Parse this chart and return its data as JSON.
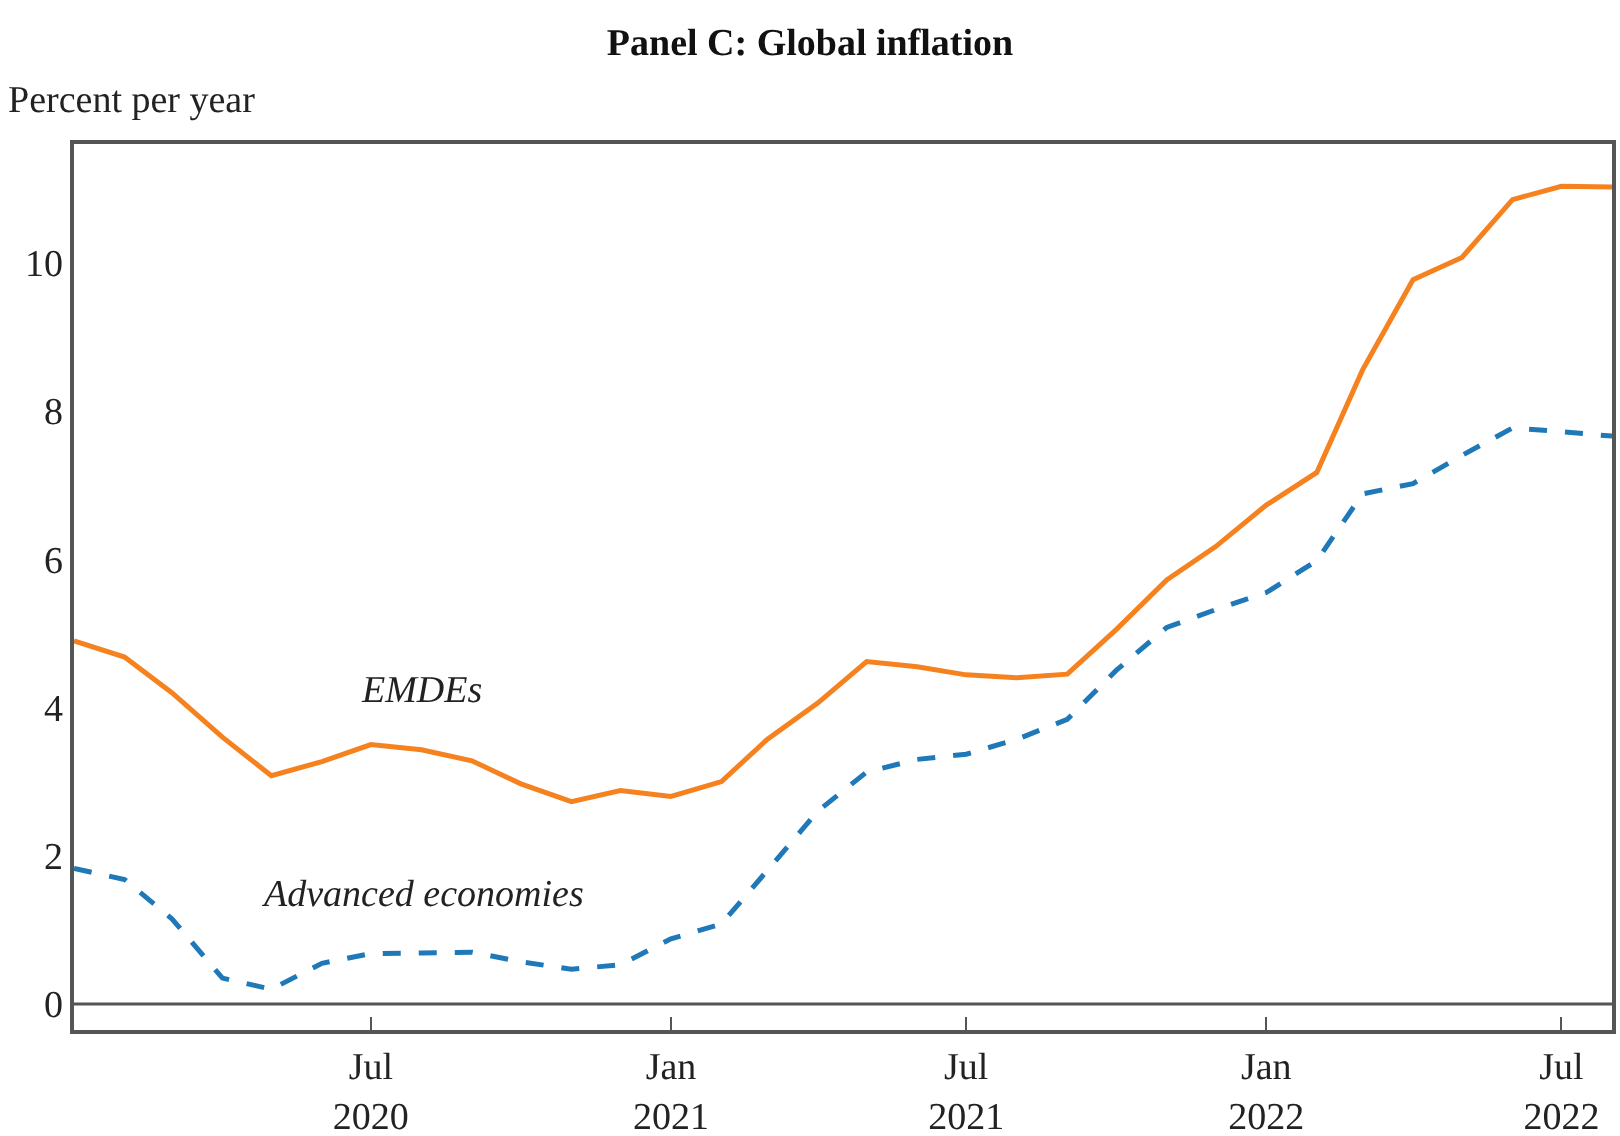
{
  "chart_data": {
    "type": "line",
    "title": "Panel C: Global inflation",
    "ylabel": "Percent per year",
    "x": [
      "2020-01",
      "2020-02",
      "2020-03",
      "2020-04",
      "2020-05",
      "2020-06",
      "2020-07",
      "2020-08",
      "2020-09",
      "2020-10",
      "2020-11",
      "2020-12",
      "2021-01",
      "2021-02",
      "2021-03",
      "2021-04",
      "2021-05",
      "2021-06",
      "2021-07",
      "2021-08",
      "2021-09",
      "2021-10",
      "2021-11",
      "2021-12",
      "2022-01",
      "2022-02",
      "2022-03",
      "2022-04",
      "2022-05",
      "2022-06",
      "2022-07",
      "2022-08"
    ],
    "series": [
      {
        "name": "EMDEs",
        "color": "#f5821f",
        "line_style": "solid",
        "values": [
          4.9,
          4.68,
          4.2,
          3.6,
          3.08,
          3.27,
          3.5,
          3.43,
          3.28,
          2.97,
          2.73,
          2.88,
          2.8,
          3.0,
          3.57,
          4.06,
          4.62,
          4.55,
          4.44,
          4.4,
          4.45,
          5.05,
          5.72,
          6.17,
          6.73,
          7.17,
          8.55,
          9.77,
          10.07,
          10.85,
          11.03,
          11.02
        ]
      },
      {
        "name": "Advanced economies",
        "color": "#1f78b8",
        "line_style": "dashed",
        "values": [
          1.83,
          1.68,
          1.15,
          0.35,
          0.2,
          0.55,
          0.68,
          0.69,
          0.7,
          0.57,
          0.47,
          0.53,
          0.88,
          1.08,
          1.8,
          2.6,
          3.13,
          3.3,
          3.37,
          3.57,
          3.84,
          4.5,
          5.08,
          5.32,
          5.55,
          5.98,
          6.88,
          7.02,
          7.4,
          7.77,
          7.72,
          7.66
        ]
      }
    ],
    "xlim": [
      "2020-01",
      "2022-08"
    ],
    "xticks": [
      {
        "value": "2020-07",
        "label": "Jul\n2020"
      },
      {
        "value": "2021-01",
        "label": "Jan\n2021"
      },
      {
        "value": "2021-07",
        "label": "Jul\n2021"
      },
      {
        "value": "2022-01",
        "label": "Jan\n2022"
      },
      {
        "value": "2022-07",
        "label": "Jul\n2022"
      }
    ],
    "ylim": [
      -0.35,
      11.6
    ],
    "yticks": [
      0,
      2,
      4,
      6,
      8,
      10
    ],
    "ref_lines": [
      {
        "axis": "y",
        "value": 0,
        "color": "#555555"
      }
    ],
    "grid": false,
    "legend": false,
    "marker": "none"
  }
}
